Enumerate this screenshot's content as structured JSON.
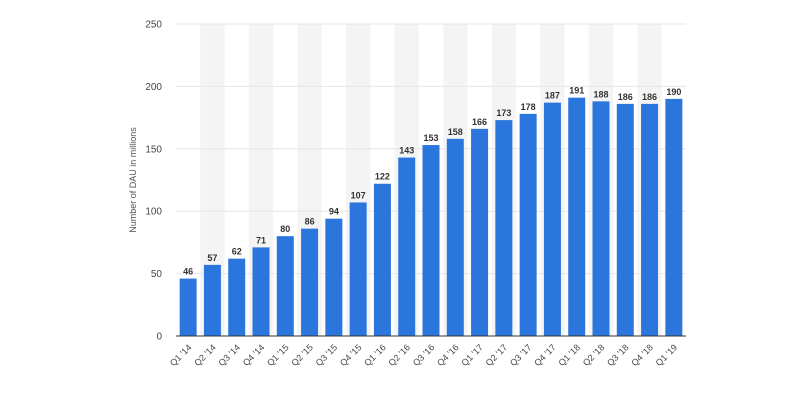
{
  "chart_data": {
    "type": "bar",
    "title": "",
    "xlabel": "",
    "ylabel": "Number of DAU in millions",
    "ylim": [
      0,
      250
    ],
    "yticks": [
      0,
      50,
      100,
      150,
      200,
      250
    ],
    "grid": true,
    "legend": "none",
    "categories": [
      "Q1 '14",
      "Q2 '14",
      "Q3 '14",
      "Q4 '14",
      "Q1 '15",
      "Q2 '15",
      "Q3 '15",
      "Q4 '15",
      "Q1 '16",
      "Q2 '16",
      "Q3 '16",
      "Q4 '16",
      "Q1 '17",
      "Q2 '17",
      "Q3 '17",
      "Q4 '17",
      "Q1 '18",
      "Q2 '18",
      "Q3 '18",
      "Q4 '18",
      "Q1 '19"
    ],
    "values": [
      46,
      57,
      62,
      71,
      80,
      86,
      94,
      107,
      122,
      143,
      153,
      158,
      166,
      173,
      178,
      187,
      191,
      188,
      186,
      186,
      190
    ],
    "colors": {
      "bar": "#2a76dd",
      "band": "#f4f4f4",
      "grid": "#e6e6e6",
      "axis": "#333333"
    }
  }
}
